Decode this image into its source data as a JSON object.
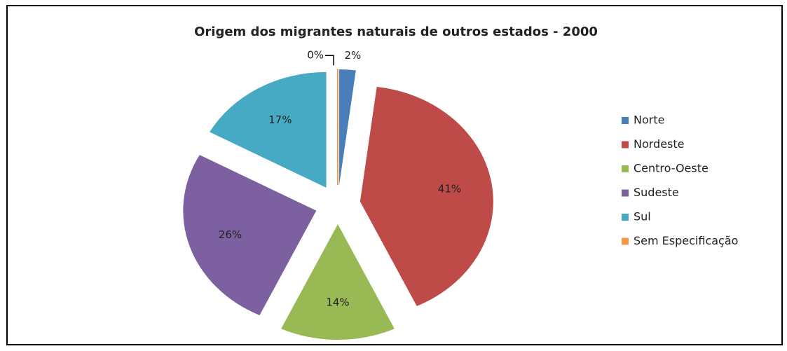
{
  "chart_data": {
    "type": "pie",
    "title": "Origem dos migrantes naturais de outros estados - 2000",
    "categories": [
      "Norte",
      "Nordeste",
      "Centro-Oeste",
      "Sudeste",
      "Sul",
      "Sem Especificação"
    ],
    "values": [
      2,
      41,
      14,
      26,
      17,
      0
    ],
    "value_labels": [
      "2%",
      "41%",
      "14%",
      "26%",
      "17%",
      "0%"
    ],
    "colors": [
      "#4a7ebb",
      "#be4b48",
      "#98b954",
      "#7d60a0",
      "#46aac5",
      "#f79646"
    ],
    "legend": "right"
  }
}
